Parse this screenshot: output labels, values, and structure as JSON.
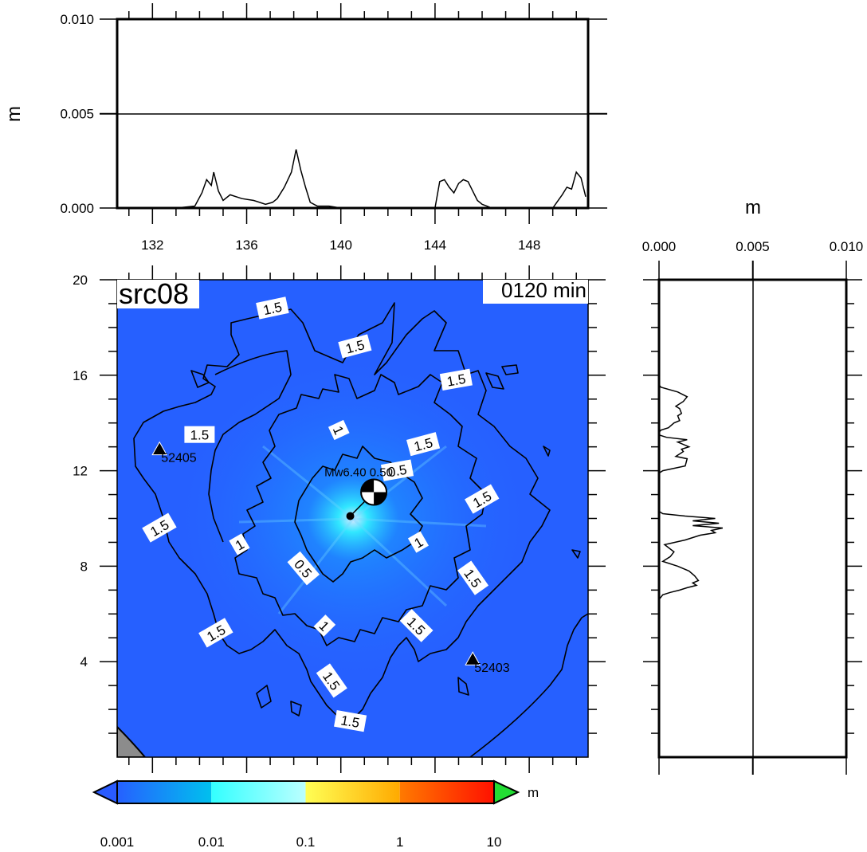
{
  "colors": {
    "background": "#ffffff",
    "ocean_field": "#2660ff",
    "land": "#8c8c8c",
    "contour": "#000000",
    "colorbar_below": "#2a5bff",
    "colorbar_above": "#22dd33"
  },
  "chart_data": [
    {
      "id": "top-profile",
      "type": "line",
      "title": "",
      "ylabel": "m",
      "xlim": [
        130.5,
        150.5
      ],
      "ylim": [
        0,
        0.01
      ],
      "xticks": [
        132,
        136,
        140,
        144,
        148
      ],
      "xtick_labels": [
        "132",
        "136",
        "140",
        "144",
        "148"
      ],
      "yticks": [
        0,
        0.005,
        0.01
      ],
      "ytick_labels": [
        "0.000",
        "0.005",
        "0.010"
      ],
      "grid": "horizontal line at 0.005",
      "series": [
        {
          "x": [
            130.5,
            133.0,
            133.8,
            134.1,
            134.3,
            134.5,
            134.6,
            134.8,
            135.0,
            135.3,
            135.8,
            136.3,
            136.8,
            137.1,
            137.3,
            137.6,
            137.9,
            138.1,
            138.3,
            138.5,
            138.7,
            139.0,
            139.5,
            140.0,
            144.0,
            144.2,
            144.4,
            144.6,
            144.8,
            145.0,
            145.2,
            145.4,
            145.6,
            145.8,
            146.0,
            146.2,
            146.4,
            149.0,
            149.4,
            149.6,
            149.8,
            150.0,
            150.2,
            150.4
          ],
          "y": [
            0,
            0,
            0.0001,
            0.0008,
            0.0015,
            0.0012,
            0.0019,
            0.0009,
            0.0004,
            0.0007,
            0.0005,
            0.0004,
            0.0002,
            0.0003,
            0.0005,
            0.0011,
            0.0019,
            0.0031,
            0.002,
            0.0011,
            0.0003,
            0.0001,
            0.0001,
            0,
            0,
            0.0014,
            0.0015,
            0.0011,
            0.0008,
            0.0013,
            0.0015,
            0.0014,
            0.0009,
            0.0004,
            0.0002,
            0.0001,
            0,
            0,
            0.0007,
            0.0011,
            0.001,
            0.0019,
            0.0016,
            0.0006
          ]
        }
      ]
    },
    {
      "id": "map",
      "type": "heatmap",
      "title": "src08",
      "time_label": "0120 min",
      "xlim": [
        130.5,
        150.5
      ],
      "ylim": [
        0,
        20
      ],
      "yticks": [
        4,
        8,
        12,
        16,
        20
      ],
      "ytick_labels": [
        "4",
        "8",
        "12",
        "16",
        "20"
      ],
      "colorbar": {
        "scale": "log",
        "unit": "m",
        "ticks": [
          0.001,
          0.01,
          0.1,
          1,
          10
        ],
        "tick_labels": [
          "0.001",
          "0.01",
          "0.1",
          "1",
          "10"
        ],
        "segments": [
          {
            "from": 0.001,
            "to": 0.01,
            "colors": [
              "#2660ff",
              "#00c0ee"
            ]
          },
          {
            "from": 0.01,
            "to": 0.1,
            "colors": [
              "#33ffff",
              "#bbffff"
            ]
          },
          {
            "from": 0.1,
            "to": 1,
            "colors": [
              "#ffff55",
              "#ffaa00"
            ]
          },
          {
            "from": 1,
            "to": 10,
            "colors": [
              "#ff7a00",
              "#ff1100"
            ]
          }
        ]
      },
      "event_label": "Mw6.40 0.50",
      "epicenter": {
        "x": 140.4,
        "y": 10.1
      },
      "mechanism": {
        "x": 141.4,
        "y": 11.1
      },
      "stations": [
        {
          "id": "52405",
          "x": 132.3,
          "y": 12.9
        },
        {
          "id": "52403",
          "x": 145.6,
          "y": 4.1
        }
      ],
      "contour_labels": [
        {
          "text": "1.5",
          "x": 137.1,
          "y": 18.8,
          "rot": -12
        },
        {
          "text": "1.5",
          "x": 140.6,
          "y": 17.2,
          "rot": -15
        },
        {
          "text": "1.5",
          "x": 144.9,
          "y": 15.8,
          "rot": -10
        },
        {
          "text": "1.5",
          "x": 134.0,
          "y": 13.5,
          "rot": 0
        },
        {
          "text": "1",
          "x": 139.9,
          "y": 13.7,
          "rot": 65
        },
        {
          "text": "1.5",
          "x": 143.5,
          "y": 13.1,
          "rot": -15
        },
        {
          "text": "0.5",
          "x": 142.4,
          "y": 12.0,
          "rot": -10
        },
        {
          "text": "1.5",
          "x": 146.0,
          "y": 10.8,
          "rot": -30
        },
        {
          "text": "1.5",
          "x": 132.3,
          "y": 9.6,
          "rot": -30
        },
        {
          "text": "1",
          "x": 135.7,
          "y": 8.9,
          "rot": -30
        },
        {
          "text": "1",
          "x": 143.3,
          "y": 9.0,
          "rot": -30
        },
        {
          "text": "0.5",
          "x": 138.4,
          "y": 7.9,
          "rot": 50
        },
        {
          "text": "1.5",
          "x": 145.6,
          "y": 7.5,
          "rot": 55
        },
        {
          "text": "1.5",
          "x": 134.7,
          "y": 5.2,
          "rot": -30
        },
        {
          "text": "1",
          "x": 139.3,
          "y": 5.5,
          "rot": 45
        },
        {
          "text": "1.5",
          "x": 143.2,
          "y": 5.5,
          "rot": 45
        },
        {
          "text": "1.5",
          "x": 139.6,
          "y": 3.2,
          "rot": 55
        },
        {
          "text": "1.5",
          "x": 140.4,
          "y": 1.5,
          "rot": 10
        }
      ]
    },
    {
      "id": "right-profile",
      "type": "line",
      "title": "",
      "xlabel": "m",
      "xlim": [
        0,
        0.01
      ],
      "ylim": [
        0,
        20
      ],
      "xticks": [
        0,
        0.005,
        0.01
      ],
      "xtick_labels": [
        "0.000",
        "0.005",
        "0.010"
      ],
      "grid": "vertical line at 0.005",
      "series": [
        {
          "x": [
            0,
            0,
            0.0001,
            0.001,
            0.0015,
            0.0013,
            0.0009,
            0.0011,
            0.0012,
            0.001,
            0.0011,
            0.0008,
            0.0005,
            0.0001,
            0,
            0,
            0.0004,
            0.0015,
            0.001,
            0.0016,
            0.0012,
            0.0013,
            0.0009,
            0.0015,
            0.0014,
            0.0008,
            0.0002,
            0,
            0,
            0.0002,
            0.0014,
            0.003,
            0.0018,
            0.0032,
            0.0018,
            0.0034,
            0.0028,
            0.003,
            0.0022,
            0.0018,
            0.0014,
            0.0003,
            0.0008,
            0.0006,
            0.0002,
            0.001,
            0.0016,
            0.0019,
            0.0021,
            0.0018,
            0.002,
            0.0015,
            0.0011,
            0.0006,
            0.0002,
            0,
            0
          ],
          "y": [
            20,
            15.6,
            15.5,
            15.3,
            15.1,
            14.9,
            14.7,
            14.6,
            14.4,
            14.3,
            14.1,
            14.0,
            13.8,
            13.7,
            13.6,
            13.5,
            13.4,
            13.3,
            13.2,
            13.0,
            12.9,
            12.8,
            12.6,
            12.5,
            12.2,
            12.1,
            12.0,
            11.9,
            10.3,
            10.2,
            10.1,
            10.0,
            9.9,
            9.8,
            9.7,
            9.6,
            9.5,
            9.4,
            9.3,
            9.2,
            9.1,
            8.9,
            8.6,
            8.4,
            8.2,
            8.0,
            7.8,
            7.6,
            7.4,
            7.3,
            7.2,
            7.1,
            7.0,
            6.9,
            6.8,
            6.6,
            0
          ]
        }
      ]
    }
  ]
}
